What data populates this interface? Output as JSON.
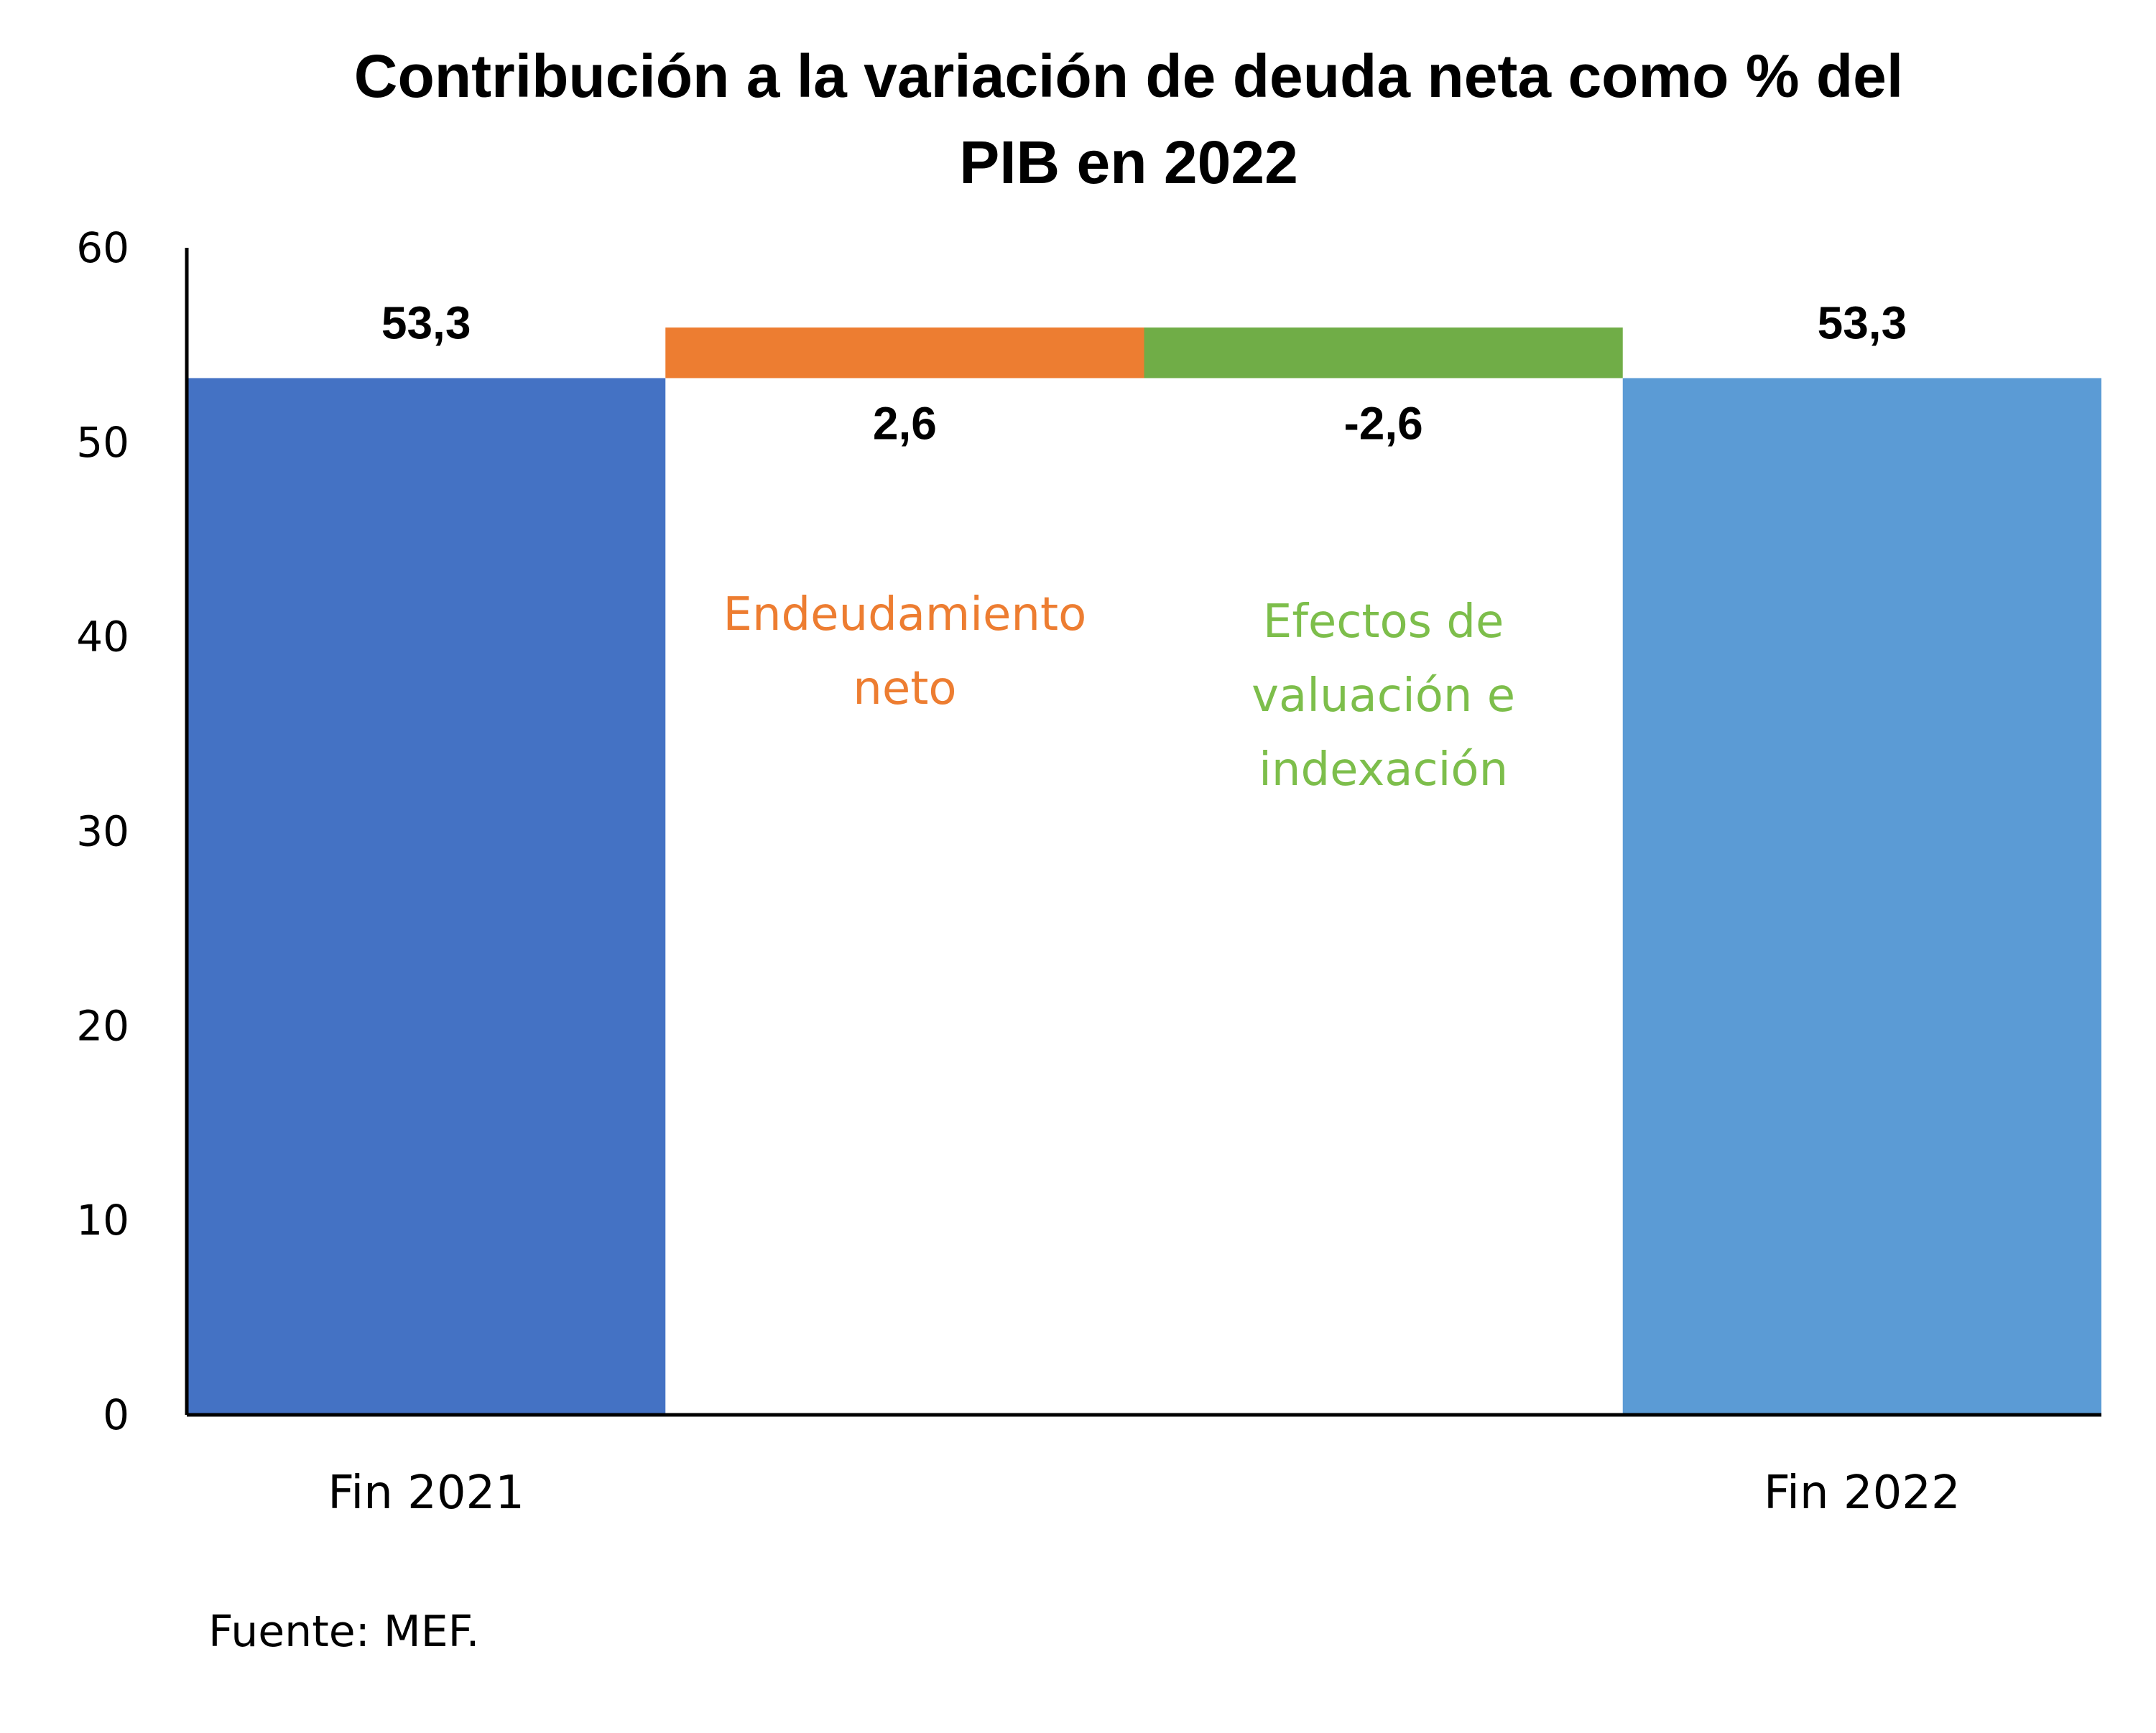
{
  "chart_data": {
    "type": "waterfall",
    "title": "Contribución a la variación de deuda neta como % del PIB en 2022",
    "title_lines": [
      "Contribución a la variación de deuda neta como % del",
      "PIB en 2022"
    ],
    "categories": [
      "Fin 2021",
      "",
      "",
      "Fin 2022"
    ],
    "steps": [
      {
        "category": "Fin 2021",
        "kind": "total",
        "value": 53.3,
        "label": "53,3",
        "color": "#4472C4"
      },
      {
        "category": "",
        "kind": "delta",
        "value": 2.6,
        "label": "2,6",
        "color": "#ED7D31",
        "name_lines": [
          "Endeudamiento",
          "neto"
        ]
      },
      {
        "category": "",
        "kind": "delta",
        "value": -2.6,
        "label": "-2,6",
        "color": "#70AD47",
        "name_lines": [
          "Efectos de",
          "valuación e",
          "indexación"
        ]
      },
      {
        "category": "Fin 2022",
        "kind": "total",
        "value": 53.3,
        "label": "53,3",
        "color": "#5B9BD5"
      }
    ],
    "ylim": [
      0,
      60
    ],
    "yticks": [
      0,
      10,
      20,
      30,
      40,
      50,
      60
    ],
    "xlabel": "",
    "ylabel": "",
    "grid": false
  },
  "source_note": "Fuente: MEF."
}
